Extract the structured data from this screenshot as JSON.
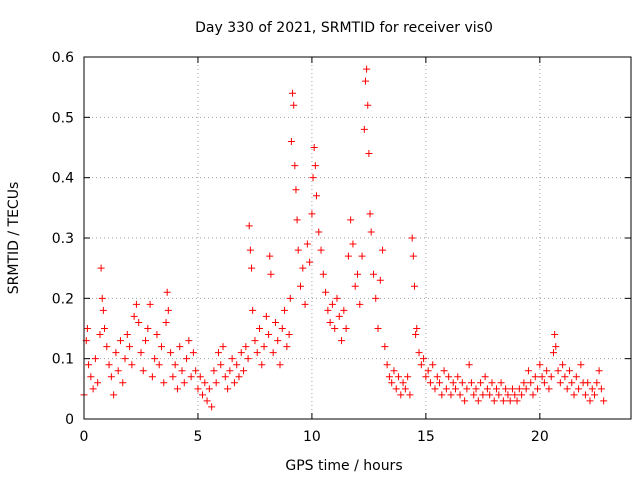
{
  "chart_data": {
    "type": "scatter",
    "title": "Day 330 of 2021, SRMTID for receiver vis0",
    "xlabel": "GPS time / hours",
    "ylabel": "SRMTID / TECUs",
    "xlim": [
      0,
      24
    ],
    "ylim": [
      0,
      0.6
    ],
    "xticks": [
      0,
      5,
      10,
      15,
      20
    ],
    "yticks": [
      0,
      0.1,
      0.2,
      0.3,
      0.4,
      0.5,
      0.6
    ],
    "xtick_labels": [
      "0",
      "5",
      "10",
      "15",
      "20"
    ],
    "ytick_labels": [
      "0",
      "0.1",
      "0.2",
      "0.3",
      "0.4",
      "0.5",
      "0.6"
    ],
    "grid": true,
    "marker": "+",
    "color": "#ff0000",
    "series": [
      {
        "name": "SRMTID",
        "points": [
          [
            0.0,
            0.04
          ],
          [
            0.1,
            0.13
          ],
          [
            0.15,
            0.15
          ],
          [
            0.2,
            0.09
          ],
          [
            0.3,
            0.07
          ],
          [
            0.4,
            0.05
          ],
          [
            0.5,
            0.1
          ],
          [
            0.6,
            0.06
          ],
          [
            0.7,
            0.14
          ],
          [
            0.75,
            0.25
          ],
          [
            0.8,
            0.2
          ],
          [
            0.85,
            0.18
          ],
          [
            0.9,
            0.15
          ],
          [
            1.0,
            0.12
          ],
          [
            1.1,
            0.09
          ],
          [
            1.2,
            0.07
          ],
          [
            1.3,
            0.04
          ],
          [
            1.4,
            0.11
          ],
          [
            1.5,
            0.08
          ],
          [
            1.6,
            0.13
          ],
          [
            1.7,
            0.06
          ],
          [
            1.8,
            0.1
          ],
          [
            1.9,
            0.14
          ],
          [
            2.0,
            0.12
          ],
          [
            2.1,
            0.09
          ],
          [
            2.2,
            0.17
          ],
          [
            2.3,
            0.19
          ],
          [
            2.4,
            0.16
          ],
          [
            2.5,
            0.11
          ],
          [
            2.6,
            0.08
          ],
          [
            2.7,
            0.13
          ],
          [
            2.8,
            0.15
          ],
          [
            2.9,
            0.19
          ],
          [
            3.0,
            0.07
          ],
          [
            3.1,
            0.1
          ],
          [
            3.2,
            0.14
          ],
          [
            3.3,
            0.09
          ],
          [
            3.4,
            0.12
          ],
          [
            3.5,
            0.06
          ],
          [
            3.6,
            0.16
          ],
          [
            3.65,
            0.21
          ],
          [
            3.7,
            0.18
          ],
          [
            3.8,
            0.11
          ],
          [
            3.9,
            0.07
          ],
          [
            4.0,
            0.09
          ],
          [
            4.1,
            0.05
          ],
          [
            4.2,
            0.12
          ],
          [
            4.3,
            0.08
          ],
          [
            4.4,
            0.06
          ],
          [
            4.5,
            0.1
          ],
          [
            4.6,
            0.13
          ],
          [
            4.7,
            0.07
          ],
          [
            4.8,
            0.11
          ],
          [
            4.9,
            0.08
          ],
          [
            5.0,
            0.05
          ],
          [
            5.1,
            0.07
          ],
          [
            5.2,
            0.04
          ],
          [
            5.3,
            0.06
          ],
          [
            5.4,
            0.03
          ],
          [
            5.5,
            0.05
          ],
          [
            5.6,
            0.02
          ],
          [
            5.7,
            0.08
          ],
          [
            5.8,
            0.06
          ],
          [
            5.9,
            0.11
          ],
          [
            6.0,
            0.09
          ],
          [
            6.1,
            0.12
          ],
          [
            6.2,
            0.07
          ],
          [
            6.3,
            0.05
          ],
          [
            6.4,
            0.08
          ],
          [
            6.5,
            0.1
          ],
          [
            6.6,
            0.06
          ],
          [
            6.7,
            0.09
          ],
          [
            6.8,
            0.07
          ],
          [
            6.9,
            0.11
          ],
          [
            7.0,
            0.08
          ],
          [
            7.1,
            0.12
          ],
          [
            7.2,
            0.1
          ],
          [
            7.25,
            0.32
          ],
          [
            7.3,
            0.28
          ],
          [
            7.35,
            0.25
          ],
          [
            7.4,
            0.18
          ],
          [
            7.5,
            0.13
          ],
          [
            7.6,
            0.11
          ],
          [
            7.7,
            0.15
          ],
          [
            7.8,
            0.09
          ],
          [
            7.9,
            0.12
          ],
          [
            8.0,
            0.17
          ],
          [
            8.1,
            0.14
          ],
          [
            8.15,
            0.27
          ],
          [
            8.2,
            0.24
          ],
          [
            8.3,
            0.11
          ],
          [
            8.4,
            0.16
          ],
          [
            8.5,
            0.13
          ],
          [
            8.6,
            0.09
          ],
          [
            8.7,
            0.15
          ],
          [
            8.8,
            0.18
          ],
          [
            8.9,
            0.12
          ],
          [
            9.0,
            0.14
          ],
          [
            9.05,
            0.2
          ],
          [
            9.1,
            0.46
          ],
          [
            9.15,
            0.54
          ],
          [
            9.2,
            0.52
          ],
          [
            9.25,
            0.42
          ],
          [
            9.3,
            0.38
          ],
          [
            9.35,
            0.33
          ],
          [
            9.4,
            0.28
          ],
          [
            9.5,
            0.22
          ],
          [
            9.6,
            0.25
          ],
          [
            9.7,
            0.19
          ],
          [
            9.8,
            0.29
          ],
          [
            9.9,
            0.26
          ],
          [
            10.0,
            0.34
          ],
          [
            10.05,
            0.4
          ],
          [
            10.1,
            0.45
          ],
          [
            10.15,
            0.42
          ],
          [
            10.2,
            0.37
          ],
          [
            10.3,
            0.31
          ],
          [
            10.4,
            0.28
          ],
          [
            10.5,
            0.24
          ],
          [
            10.6,
            0.21
          ],
          [
            10.7,
            0.18
          ],
          [
            10.8,
            0.16
          ],
          [
            10.9,
            0.19
          ],
          [
            11.0,
            0.15
          ],
          [
            11.1,
            0.2
          ],
          [
            11.2,
            0.17
          ],
          [
            11.3,
            0.13
          ],
          [
            11.4,
            0.18
          ],
          [
            11.5,
            0.15
          ],
          [
            11.6,
            0.27
          ],
          [
            11.7,
            0.33
          ],
          [
            11.8,
            0.29
          ],
          [
            11.9,
            0.22
          ],
          [
            12.0,
            0.24
          ],
          [
            12.1,
            0.19
          ],
          [
            12.2,
            0.27
          ],
          [
            12.3,
            0.48
          ],
          [
            12.35,
            0.56
          ],
          [
            12.4,
            0.58
          ],
          [
            12.45,
            0.52
          ],
          [
            12.5,
            0.44
          ],
          [
            12.55,
            0.34
          ],
          [
            12.6,
            0.31
          ],
          [
            12.7,
            0.24
          ],
          [
            12.8,
            0.2
          ],
          [
            12.9,
            0.15
          ],
          [
            13.0,
            0.23
          ],
          [
            13.1,
            0.28
          ],
          [
            13.2,
            0.12
          ],
          [
            13.3,
            0.09
          ],
          [
            13.4,
            0.07
          ],
          [
            13.5,
            0.06
          ],
          [
            13.6,
            0.08
          ],
          [
            13.7,
            0.05
          ],
          [
            13.8,
            0.07
          ],
          [
            13.9,
            0.04
          ],
          [
            14.0,
            0.06
          ],
          [
            14.1,
            0.05
          ],
          [
            14.2,
            0.07
          ],
          [
            14.3,
            0.04
          ],
          [
            14.4,
            0.3
          ],
          [
            14.45,
            0.27
          ],
          [
            14.5,
            0.22
          ],
          [
            14.55,
            0.14
          ],
          [
            14.6,
            0.15
          ],
          [
            14.7,
            0.11
          ],
          [
            14.8,
            0.09
          ],
          [
            14.9,
            0.1
          ],
          [
            15.0,
            0.07
          ],
          [
            15.1,
            0.08
          ],
          [
            15.2,
            0.06
          ],
          [
            15.3,
            0.09
          ],
          [
            15.4,
            0.05
          ],
          [
            15.5,
            0.07
          ],
          [
            15.6,
            0.06
          ],
          [
            15.7,
            0.04
          ],
          [
            15.8,
            0.08
          ],
          [
            15.9,
            0.05
          ],
          [
            16.0,
            0.07
          ],
          [
            16.1,
            0.04
          ],
          [
            16.2,
            0.06
          ],
          [
            16.3,
            0.05
          ],
          [
            16.4,
            0.07
          ],
          [
            16.5,
            0.04
          ],
          [
            16.6,
            0.06
          ],
          [
            16.7,
            0.03
          ],
          [
            16.8,
            0.05
          ],
          [
            16.9,
            0.09
          ],
          [
            17.0,
            0.06
          ],
          [
            17.1,
            0.04
          ],
          [
            17.2,
            0.05
          ],
          [
            17.3,
            0.03
          ],
          [
            17.4,
            0.06
          ],
          [
            17.5,
            0.04
          ],
          [
            17.6,
            0.07
          ],
          [
            17.7,
            0.05
          ],
          [
            17.8,
            0.04
          ],
          [
            17.9,
            0.06
          ],
          [
            18.0,
            0.03
          ],
          [
            18.1,
            0.05
          ],
          [
            18.2,
            0.04
          ],
          [
            18.3,
            0.06
          ],
          [
            18.4,
            0.03
          ],
          [
            18.5,
            0.05
          ],
          [
            18.6,
            0.04
          ],
          [
            18.7,
            0.03
          ],
          [
            18.8,
            0.05
          ],
          [
            18.9,
            0.04
          ],
          [
            19.0,
            0.03
          ],
          [
            19.1,
            0.05
          ],
          [
            19.2,
            0.04
          ],
          [
            19.3,
            0.06
          ],
          [
            19.4,
            0.05
          ],
          [
            19.5,
            0.08
          ],
          [
            19.6,
            0.06
          ],
          [
            19.7,
            0.04
          ],
          [
            19.8,
            0.07
          ],
          [
            19.9,
            0.05
          ],
          [
            20.0,
            0.09
          ],
          [
            20.1,
            0.07
          ],
          [
            20.2,
            0.06
          ],
          [
            20.3,
            0.08
          ],
          [
            20.4,
            0.05
          ],
          [
            20.5,
            0.07
          ],
          [
            20.6,
            0.11
          ],
          [
            20.65,
            0.14
          ],
          [
            20.7,
            0.12
          ],
          [
            20.8,
            0.08
          ],
          [
            20.9,
            0.06
          ],
          [
            21.0,
            0.09
          ],
          [
            21.1,
            0.07
          ],
          [
            21.2,
            0.05
          ],
          [
            21.3,
            0.08
          ],
          [
            21.4,
            0.06
          ],
          [
            21.5,
            0.04
          ],
          [
            21.6,
            0.07
          ],
          [
            21.7,
            0.05
          ],
          [
            21.8,
            0.09
          ],
          [
            21.9,
            0.06
          ],
          [
            22.0,
            0.04
          ],
          [
            22.1,
            0.06
          ],
          [
            22.2,
            0.03
          ],
          [
            22.3,
            0.05
          ],
          [
            22.4,
            0.04
          ],
          [
            22.5,
            0.06
          ],
          [
            22.6,
            0.08
          ],
          [
            22.7,
            0.05
          ],
          [
            22.8,
            0.03
          ]
        ]
      }
    ]
  }
}
